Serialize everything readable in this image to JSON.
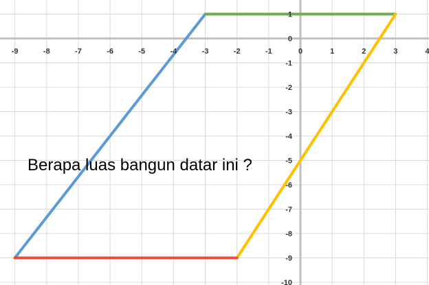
{
  "chart_data": {
    "type": "line",
    "xlim": [
      -9.4,
      4
    ],
    "ylim": [
      -10,
      1.5
    ],
    "x_ticks": [
      -9,
      -8,
      -7,
      -6,
      -5,
      -4,
      -3,
      -2,
      -1,
      0,
      1,
      2,
      3,
      4
    ],
    "y_ticks": [
      1,
      0,
      -1,
      -2,
      -3,
      -4,
      -5,
      -6,
      -7,
      -8,
      -9,
      -10
    ],
    "grid": true,
    "annotation": "Berapa luas bangun datar ini ?",
    "series": [
      {
        "color": "#5b9bd5",
        "x": [
          -9,
          -3
        ],
        "y": [
          -9,
          1
        ]
      },
      {
        "color": "#70ad47",
        "x": [
          -3,
          3
        ],
        "y": [
          1,
          1
        ]
      },
      {
        "color": "#ffc000",
        "x": [
          -2,
          3
        ],
        "y": [
          -9,
          1
        ]
      },
      {
        "color": "#e84c3d",
        "x": [
          -9,
          -2
        ],
        "y": [
          -9,
          -9
        ]
      }
    ]
  }
}
